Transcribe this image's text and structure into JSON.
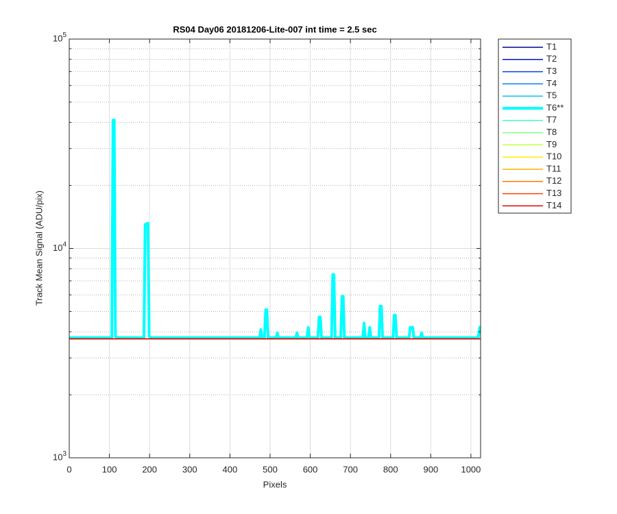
{
  "chart_data": {
    "type": "line",
    "title": "RS04 Day06 20181206-Lite-007 int time = 2.5 sec",
    "x_label": "Pixels",
    "y_label": "Track Mean Signal (ADU/pix)",
    "xlim": [
      0,
      1024
    ],
    "xticks": [
      0,
      100,
      200,
      300,
      400,
      500,
      600,
      700,
      800,
      900,
      1000
    ],
    "ylim": [
      1000,
      100000
    ],
    "yticks": [
      {
        "value": 1000,
        "label": "10^3"
      },
      {
        "value": 10000,
        "label": "10^4"
      },
      {
        "value": 100000,
        "label": "10^5"
      }
    ],
    "yscale": "log",
    "grid": true,
    "minor_grid": true,
    "legend": "outside-right",
    "series": [
      {
        "name": "T1",
        "color": "#00008f",
        "line_width": 1.5,
        "x": [
          0,
          1024
        ],
        "values": [
          3700,
          3700
        ]
      },
      {
        "name": "T2",
        "color": "#0010c8",
        "line_width": 1.5,
        "x": [
          0,
          1024
        ],
        "values": [
          3700,
          3700
        ]
      },
      {
        "name": "T3",
        "color": "#0040e6",
        "line_width": 1.5,
        "x": [
          0,
          1024
        ],
        "values": [
          3700,
          3700
        ]
      },
      {
        "name": "T4",
        "color": "#0080f0",
        "line_width": 1.5,
        "x": [
          0,
          1024
        ],
        "values": [
          3700,
          3700
        ]
      },
      {
        "name": "T5",
        "color": "#10bff8",
        "line_width": 1.5,
        "x": [
          0,
          1024
        ],
        "values": [
          3700,
          3700
        ]
      },
      {
        "name": "T6**",
        "color": "#00ffff",
        "line_width": 4,
        "x": [
          0,
          106,
          109,
          112,
          115,
          120,
          186,
          189,
          196,
          199,
          204,
          474,
          477,
          480,
          486,
          489,
          492,
          495,
          515,
          518,
          521,
          564,
          567,
          570,
          592,
          595,
          598,
          619,
          622,
          625,
          628,
          653,
          656,
          659,
          662,
          676,
          679,
          682,
          685,
          731,
          734,
          737,
          745,
          748,
          751,
          771,
          774,
          777,
          780,
          806,
          809,
          812,
          815,
          846,
          849,
          855,
          858,
          874,
          877,
          880,
          1018,
          1022,
          1024
        ],
        "values": [
          3750,
          3750,
          41000,
          41000,
          3800,
          3750,
          3750,
          13000,
          13200,
          3800,
          3750,
          3750,
          4100,
          3750,
          3750,
          5100,
          5100,
          3750,
          3750,
          3950,
          3750,
          3750,
          3950,
          3750,
          3750,
          4200,
          3750,
          3750,
          4700,
          4700,
          3750,
          3750,
          7500,
          7500,
          3750,
          3750,
          5900,
          5900,
          3750,
          3750,
          4400,
          3750,
          3750,
          4200,
          3750,
          3750,
          5300,
          5300,
          3750,
          3750,
          4800,
          4800,
          3750,
          3750,
          4200,
          4200,
          3750,
          3750,
          3950,
          3750,
          3750,
          4200,
          4200
        ]
      },
      {
        "name": "T7",
        "color": "#40ffc0",
        "line_width": 1.5,
        "x": [
          0,
          1024
        ],
        "values": [
          3700,
          3700
        ]
      },
      {
        "name": "T8",
        "color": "#80ff80",
        "line_width": 1.5,
        "x": [
          0,
          1024
        ],
        "values": [
          3700,
          3700
        ]
      },
      {
        "name": "T9",
        "color": "#c0ff40",
        "line_width": 1.5,
        "x": [
          0,
          1024
        ],
        "values": [
          3700,
          3700
        ]
      },
      {
        "name": "T10",
        "color": "#ffee00",
        "line_width": 1.5,
        "x": [
          0,
          1024
        ],
        "values": [
          3700,
          3700
        ]
      },
      {
        "name": "T11",
        "color": "#ffb000",
        "line_width": 1.5,
        "x": [
          0,
          1024
        ],
        "values": [
          3700,
          3700
        ]
      },
      {
        "name": "T12",
        "color": "#ff7a00",
        "line_width": 1.5,
        "x": [
          0,
          1024
        ],
        "values": [
          3700,
          3700
        ]
      },
      {
        "name": "T13",
        "color": "#ff4000",
        "line_width": 1.5,
        "x": [
          0,
          1024
        ],
        "values": [
          3700,
          3700
        ]
      },
      {
        "name": "T14",
        "color": "#e00000",
        "line_width": 1.5,
        "x": [
          0,
          1024
        ],
        "values": [
          3700,
          3700
        ]
      }
    ]
  }
}
